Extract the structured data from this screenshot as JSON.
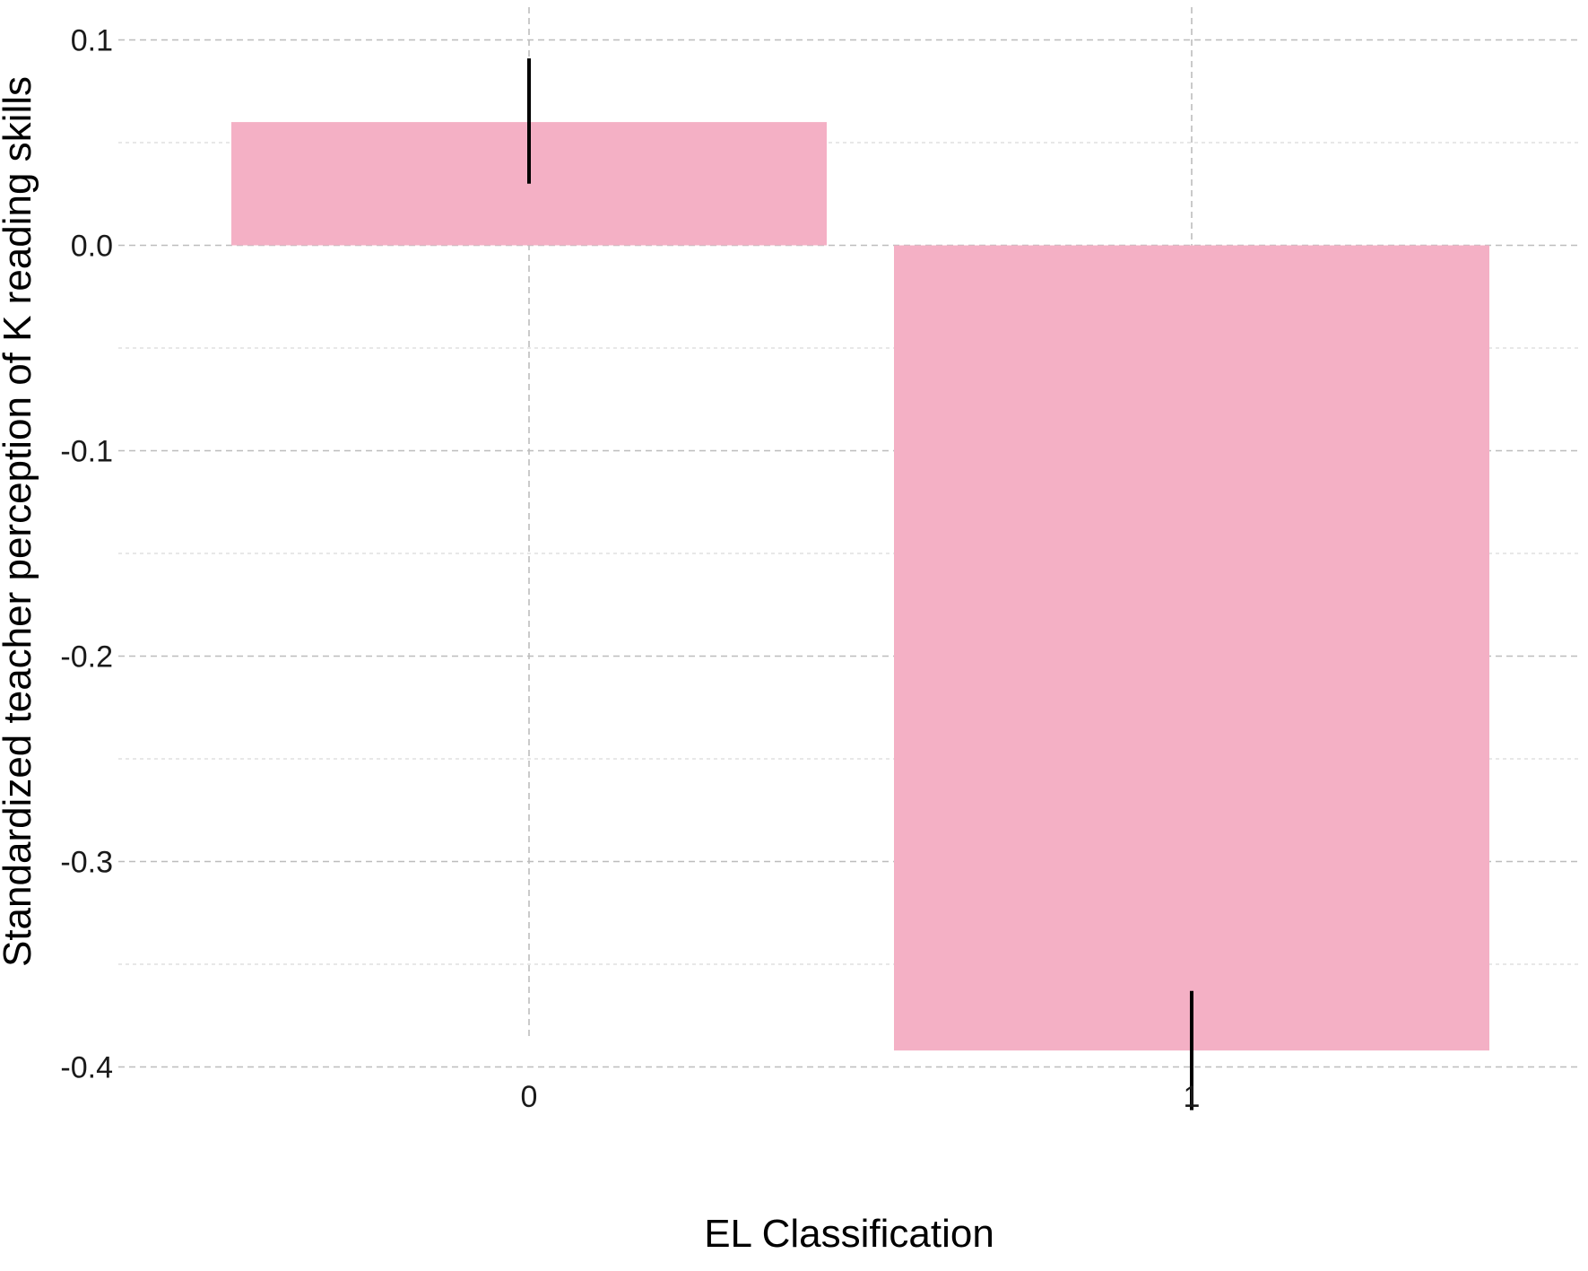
{
  "chart_data": {
    "type": "bar",
    "title": "",
    "xlabel": "EL Classification",
    "ylabel": "Standardized teacher perception of K reading skills",
    "categories": [
      "0",
      "1"
    ],
    "values": [
      0.06,
      -0.392
    ],
    "error_bars": [
      {
        "low": 0.03,
        "high": 0.091
      },
      {
        "low": -0.421,
        "high": -0.363
      }
    ],
    "ylim": [
      -0.45,
      0.115
    ],
    "yticks": [
      0.1,
      0.0,
      -0.1,
      -0.2,
      -0.3,
      -0.4
    ],
    "ytick_labels": [
      "0.1",
      "0.0",
      "-0.1",
      "-0.2",
      "-0.3",
      "-0.4"
    ],
    "grid": true,
    "legend": "none"
  },
  "colors": {
    "bar": "#f4b0c5",
    "error_bar": "#000000",
    "grid_major": "#bdbdbd",
    "grid_minor": "#d9d9d9"
  }
}
